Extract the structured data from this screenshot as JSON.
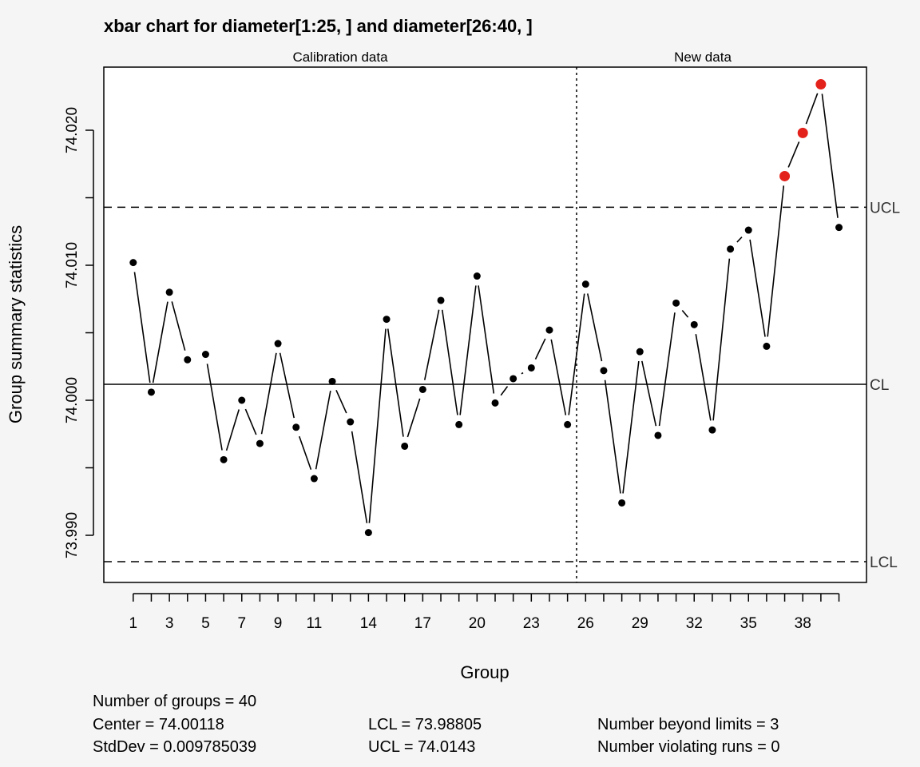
{
  "chart_data": {
    "type": "line",
    "title": "xbar chart for diameter[1:25, ] and diameter[26:40, ]",
    "xlabel": "Group",
    "ylabel": "Group summary statistics",
    "section_labels": [
      "Calibration data",
      "New data"
    ],
    "calibration_groups": 25,
    "x": [
      1,
      2,
      3,
      4,
      5,
      6,
      7,
      8,
      9,
      10,
      11,
      12,
      13,
      14,
      15,
      16,
      17,
      18,
      19,
      20,
      21,
      22,
      23,
      24,
      25,
      26,
      27,
      28,
      29,
      30,
      31,
      32,
      33,
      34,
      35,
      36,
      37,
      38,
      39,
      40
    ],
    "values": [
      74.0102,
      74.0006,
      74.008,
      74.003,
      74.0034,
      73.9956,
      74.0,
      73.9968,
      74.0042,
      73.998,
      73.9942,
      74.0014,
      73.9984,
      73.9902,
      74.006,
      73.9966,
      74.0008,
      74.0074,
      73.9982,
      74.0092,
      73.9998,
      74.0016,
      74.0024,
      74.0052,
      73.9982,
      74.0086,
      74.0022,
      73.9924,
      74.0036,
      73.9974,
      74.0072,
      74.0056,
      73.9978,
      74.0112,
      74.0126,
      74.004,
      74.0166,
      74.0198,
      74.0234,
      74.0128
    ],
    "beyond_limits": [
      37,
      38,
      39
    ],
    "x_tick_labels": [
      "1",
      "3",
      "5",
      "7",
      "9",
      "11",
      "14",
      "17",
      "20",
      "23",
      "26",
      "29",
      "32",
      "35",
      "38"
    ],
    "x_tick_label_positions": [
      1,
      3,
      5,
      7,
      9,
      11,
      14,
      17,
      20,
      23,
      26,
      29,
      32,
      35,
      38
    ],
    "y_ticks": [
      73.99,
      73.995,
      74.0,
      74.005,
      74.01,
      74.015,
      74.02
    ],
    "y_tick_labels": [
      "73.990",
      "74.000",
      "74.010",
      "74.020"
    ],
    "ylim": [
      73.9862,
      74.0253
    ],
    "center": 74.00118,
    "lcl": 73.98805,
    "ucl": 74.0143,
    "limit_labels": {
      "ucl": "UCL",
      "cl": "CL",
      "lcl": "LCL"
    },
    "point_color": "#000000",
    "violation_color": "#e3221b",
    "grid": false
  },
  "stats": {
    "col1": [
      "Number of groups = 40",
      "Center = 74.00118",
      "StdDev = 0.009785039"
    ],
    "col2": [
      "LCL = 73.98805",
      "UCL = 74.0143"
    ],
    "col3": [
      "Number beyond limits = 3",
      "Number violating runs = 0"
    ]
  }
}
